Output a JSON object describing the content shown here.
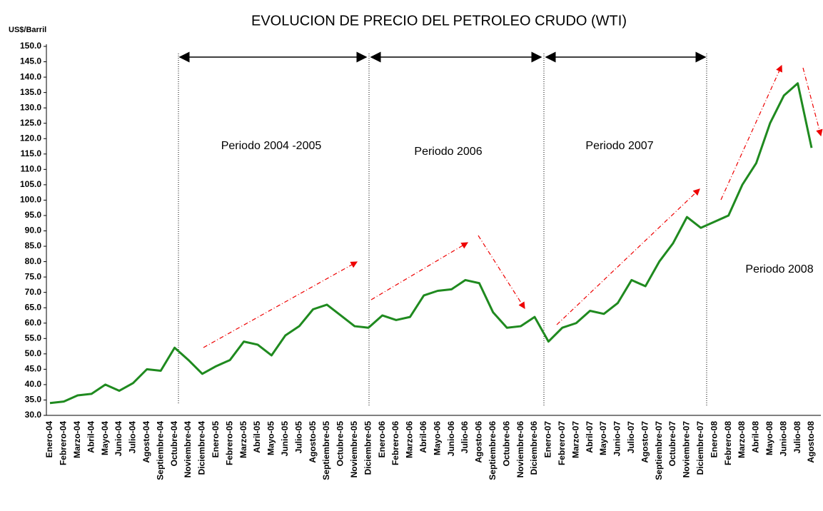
{
  "chart_data": {
    "type": "line",
    "title": "EVOLUCION DE PRECIO DEL PETROLEO CRUDO (WTI)",
    "y_axis_label": "US$/Barril",
    "annotations": [
      "Periodo 2004 -2005",
      "Periodo 2006",
      "Periodo 2007",
      "Periodo 2008"
    ],
    "categories": [
      "Enero-04",
      "Febrero-04",
      "Marzo-04",
      "Abril-04",
      "Mayo-04",
      "Junio-04",
      "Julio-04",
      "Agosto-04",
      "Septiembre-04",
      "Octubre-04",
      "Noviembre-04",
      "Diciembre-04",
      "Enero-05",
      "Febrero-05",
      "Marzo-05",
      "Abril-05",
      "Mayo-05",
      "Junio-05",
      "Julio-05",
      "Agosto-05",
      "Septiembre-05",
      "Octubre-05",
      "Noviembre-05",
      "Diciembre-05",
      "Enero-06",
      "Febrero-06",
      "Marzo-06",
      "Abril-06",
      "Mayo-06",
      "Junio-06",
      "Julio-06",
      "Agosto-06",
      "Septiembre-06",
      "Octubre-06",
      "Noviembre-06",
      "Diciembre-06",
      "Enero-07",
      "Febrero-07",
      "Marzo-07",
      "Abril-07",
      "Mayo-07",
      "Junio-07",
      "Julio-07",
      "Agosto-07",
      "Septiembre-07",
      "Octubre-07",
      "Noviembre-07",
      "Diciembre-07",
      "Enero-08",
      "Febrero-08",
      "Marzo-08",
      "Abril-08",
      "Mayo-08",
      "Junio-08",
      "Julio-08",
      "Agosto-08"
    ],
    "series": [
      {
        "color": "#1f8a1f",
        "values": [
          34,
          34.5,
          36.5,
          37,
          40,
          38,
          40.5,
          45,
          44.5,
          52,
          48,
          43.5,
          46,
          48,
          54,
          53,
          49.5,
          56,
          59,
          64.5,
          66,
          62.5,
          59,
          58.5,
          62.5,
          61,
          62,
          69,
          70.5,
          71,
          74,
          73,
          63.5,
          58.5,
          59,
          62,
          54,
          58.5,
          60,
          64,
          63,
          66.5,
          74,
          72,
          80,
          86,
          94.5,
          91,
          93,
          95,
          105,
          112,
          125,
          134,
          138,
          117
        ]
      }
    ],
    "ylim": [
      30,
      150
    ],
    "yticks": [
      {
        "value": 30,
        "label": "30.0"
      },
      {
        "value": 35,
        "label": "35.0"
      },
      {
        "value": 40,
        "label": "40.0"
      },
      {
        "value": 45,
        "label": "45.0"
      },
      {
        "value": 50,
        "label": "50.0"
      },
      {
        "value": 55,
        "label": "55.0"
      },
      {
        "value": 60,
        "label": "60.0"
      },
      {
        "value": 65,
        "label": "65.0"
      },
      {
        "value": 70,
        "label": "70.0"
      },
      {
        "value": 75,
        "label": "75.0"
      },
      {
        "value": 80,
        "label": "80.0"
      },
      {
        "value": 85,
        "label": "85.0"
      },
      {
        "value": 90,
        "label": "90.0"
      },
      {
        "value": 95,
        "label": "95.0"
      },
      {
        "value": 100,
        "label": "100.0"
      },
      {
        "value": 105,
        "label": "105.0"
      },
      {
        "value": 110,
        "label": "110.0"
      },
      {
        "value": 115,
        "label": "115.0"
      },
      {
        "value": 120,
        "label": "120.0"
      },
      {
        "value": 125,
        "label": "125.0"
      },
      {
        "value": 130,
        "label": "130.0"
      },
      {
        "value": 135,
        "label": "135.0"
      },
      {
        "value": 140,
        "label": "140.0"
      },
      {
        "value": 145,
        "label": "145.0"
      },
      {
        "value": 150,
        "label": "150.0"
      }
    ],
    "grid": false
  }
}
